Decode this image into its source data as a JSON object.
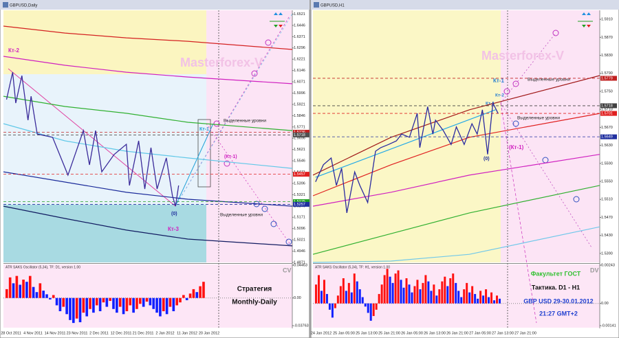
{
  "windows": [
    {
      "title": "GBPUSD,Daily",
      "watermark": "Masterforex-V",
      "price": {
        "xlim": [
          0,
          94
        ],
        "ylim": [
          1.4871,
          1.6546
        ],
        "yticks": [
          1.6521,
          1.6446,
          1.6371,
          1.6296,
          1.6221,
          1.6146,
          1.6071,
          1.5996,
          1.5921,
          1.5846,
          1.5771,
          1.5696,
          1.5621,
          1.5546,
          1.5471,
          1.5396,
          1.5321,
          1.5246,
          1.5171,
          1.5096,
          1.5021,
          1.4946,
          1.4871
        ],
        "x": [
          1,
          3,
          4,
          6,
          8,
          9,
          11,
          16,
          21,
          26,
          28,
          30,
          32,
          36,
          40,
          41,
          44,
          46,
          48,
          50,
          53,
          55,
          56,
          57
        ],
        "values": [
          1.5953,
          1.6135,
          1.593,
          1.6112,
          1.5816,
          1.5975,
          1.5724,
          1.5702,
          1.5451,
          1.5747,
          1.5519,
          1.5747,
          1.5473,
          1.5588,
          1.5656,
          1.5382,
          1.5679,
          1.5359,
          1.5633,
          1.5359,
          1.5565,
          1.5314,
          1.5245,
          1.5382
        ],
        "color": "#3a2a9a"
      },
      "averages": [
        {
          "color": "#d42020",
          "x": [
            0,
            20,
            40,
            60,
            94
          ],
          "values": [
            1.6441,
            1.6395,
            1.6363,
            1.634,
            1.6286
          ]
        },
        {
          "color": "#d020c0",
          "x": [
            0,
            20,
            40,
            60,
            94
          ],
          "values": [
            1.624,
            1.6181,
            1.6135,
            1.6103,
            1.6058
          ]
        },
        {
          "color": "#30b030",
          "x": [
            0,
            20,
            40,
            60,
            94
          ],
          "values": [
            1.5975,
            1.5907,
            1.5862,
            1.5802,
            1.5747
          ]
        },
        {
          "color": "#60c8e8",
          "x": [
            0,
            20,
            40,
            60,
            94
          ],
          "values": [
            1.5793,
            1.5679,
            1.561,
            1.5565,
            1.5496
          ]
        },
        {
          "color": "#1a2a9a",
          "x": [
            0,
            20,
            40,
            60,
            94
          ],
          "values": [
            1.5473,
            1.5405,
            1.5337,
            1.5291,
            1.5245
          ]
        },
        {
          "color": "#101a60",
          "x": [
            0,
            20,
            40,
            60,
            94
          ],
          "values": [
            1.5245,
            1.5163,
            1.5086,
            1.5026,
            1.4981
          ]
        }
      ],
      "levels": [
        {
          "value": 1.5736,
          "color": "#c02020"
        },
        {
          "value": 1.5718,
          "color": "#505050"
        },
        {
          "value": 1.5457,
          "color": "#e02020"
        },
        {
          "value": 1.5275,
          "color": "#20a020"
        },
        {
          "value": 1.5257,
          "color": "#2030a0"
        }
      ],
      "oscillator": {
        "label": "ATR SAKS Oscillator (5,34), TF: D1, version 1.00",
        "ylim": [
          -0.03763,
          0.04463
        ],
        "yticks": [
          0.04463,
          {
            "value": 0,
            "label": "0.00"
          },
          -0.03763
        ],
        "values": [
          0.012,
          0.028,
          0.02,
          0.03,
          0.018,
          0.025,
          0.022,
          0.03,
          0.015,
          0.008,
          0.02,
          0.01,
          0.005,
          -0.002,
          0.004,
          -0.01,
          -0.018,
          -0.012,
          -0.022,
          -0.03,
          -0.034,
          -0.028,
          -0.033,
          -0.02,
          -0.025,
          -0.015,
          -0.02,
          -0.01,
          -0.018,
          -0.006,
          -0.012,
          -0.004,
          -0.015,
          -0.02,
          -0.012,
          -0.022,
          -0.018,
          -0.01,
          -0.02,
          -0.015,
          -0.008,
          -0.012,
          -0.005,
          -0.01,
          -0.015,
          -0.02,
          -0.025,
          -0.018,
          -0.022,
          -0.012,
          -0.018,
          -0.01,
          -0.006,
          0.004,
          -0.003,
          0.006,
          0.012,
          0.008,
          0.016,
          0.022
        ]
      },
      "dates": [
        "28 Oct 2011",
        "4 Nov 2011",
        "14 Nov 2011",
        "23 Nov 2011",
        "2 Dec 2011",
        "12 Dec 2011",
        "21 Dec 2011",
        "2 Jan 2012",
        "11 Jan 2012",
        "20 Jan 2012"
      ],
      "annotations": [
        "Кт-2",
        "Кт-3",
        "Кт-1",
        "(Кт-1)",
        "(0)",
        "Выделенные уровни",
        "Выделенные уровни",
        "Стратегия",
        "Monthly-Daily",
        "CV"
      ]
    },
    {
      "title": "GBPUSD,H1",
      "watermark": "Masterforex-V",
      "price": {
        "xlim": [
          0,
          110
        ],
        "ylim": [
          1.537,
          1.593
        ],
        "yticks": [
          {
            "value": 1.591,
            "label": "1.5910"
          },
          {
            "value": 1.587,
            "label": "1.5870"
          },
          {
            "value": 1.583,
            "label": "1.5830"
          },
          {
            "value": 1.579,
            "label": "1.5790"
          },
          {
            "value": 1.575,
            "label": "1.5750"
          },
          {
            "value": 1.571,
            "label": "1.5710"
          },
          {
            "value": 1.567,
            "label": "1.5670"
          },
          {
            "value": 1.563,
            "label": "1.5630"
          },
          {
            "value": 1.559,
            "label": "1.5590"
          },
          {
            "value": 1.555,
            "label": "1.5550"
          },
          {
            "value": 1.551,
            "label": "1.5510"
          },
          {
            "value": 1.547,
            "label": "1.5470"
          },
          {
            "value": 1.543,
            "label": "1.5430"
          },
          {
            "value": 1.539,
            "label": "1.5390"
          }
        ],
        "x": [
          1,
          4,
          7,
          9,
          11,
          13,
          16,
          18,
          21,
          24,
          26,
          29,
          32,
          34,
          37,
          40,
          41,
          44,
          46,
          47,
          50,
          53,
          55,
          58,
          61,
          63,
          65,
          67,
          69,
          71
        ],
        "values": [
          1.5549,
          1.5587,
          1.5602,
          1.5541,
          1.5579,
          1.548,
          1.5571,
          1.5541,
          1.5503,
          1.5617,
          1.5625,
          1.5632,
          1.564,
          1.5655,
          1.5648,
          1.5701,
          1.5625,
          1.5716,
          1.5655,
          1.5686,
          1.5663,
          1.5632,
          1.5671,
          1.5632,
          1.5678,
          1.5655,
          1.5709,
          1.561,
          1.5724,
          1.5701
        ],
        "color": "#2a2aa0"
      },
      "averages": [
        {
          "color": "#a01818",
          "x": [
            0,
            30,
            60,
            110
          ],
          "values": [
            1.5564,
            1.5648,
            1.5709,
            1.5785
          ]
        },
        {
          "color": "#e02020",
          "x": [
            0,
            30,
            60,
            110
          ],
          "values": [
            1.5518,
            1.5587,
            1.5648,
            1.5701
          ]
        },
        {
          "color": "#d020c0",
          "x": [
            0,
            30,
            60,
            110
          ],
          "values": [
            1.5495,
            1.5526,
            1.5564,
            1.561
          ]
        },
        {
          "color": "#30b030",
          "x": [
            0,
            30,
            60,
            110
          ],
          "values": [
            1.5388,
            1.5434,
            1.548,
            1.5541
          ]
        },
        {
          "color": "#70c8ea",
          "x": [
            0,
            30,
            60,
            110
          ],
          "values": [
            1.537,
            1.5373,
            1.5388,
            1.5449
          ]
        },
        {
          "color": "#20a8e8",
          "x": [
            1,
            70
          ],
          "values": [
            1.5559,
            1.5709
          ]
        }
      ],
      "levels": [
        {
          "value": 1.5779,
          "color": "#c02020"
        },
        {
          "value": 1.5718,
          "color": "#404040"
        },
        {
          "value": 1.5701,
          "color": "#e02020"
        },
        {
          "value": 1.5649,
          "color": "#2030a0"
        }
      ],
      "oscillator": {
        "label": "ATR SAKS Oscillator (5,34), TF: H1, version 1.00",
        "ylim": [
          -0.00141,
          0.00243
        ],
        "yticks": [
          0.00243,
          {
            "value": 0,
            "label": "0.00"
          },
          -0.00141
        ],
        "values": [
          0.0012,
          0.0018,
          0.0008,
          0.0015,
          0.0006,
          -0.0004,
          -0.0009,
          -0.0003,
          0.0005,
          0.0011,
          0.0016,
          0.0008,
          0.0013,
          0.0007,
          0.0019,
          0.0014,
          0.0009,
          0.0004,
          -0.0002,
          -0.0006,
          -0.0011,
          -0.0008,
          -0.0004,
          0.0006,
          0.0012,
          0.0018,
          0.0022,
          0.0017,
          0.0013,
          0.0019,
          0.0021,
          0.0015,
          0.001,
          0.0016,
          0.0012,
          0.0007,
          0.0011,
          0.0015,
          0.0009,
          0.0013,
          0.0018,
          0.0014,
          0.0008,
          0.0012,
          0.0005,
          0.0009,
          0.0014,
          0.0017,
          0.0011,
          0.0016,
          0.0019,
          0.0013,
          0.0008,
          0.0004,
          0.0009,
          0.0013,
          0.0007,
          0.0011,
          0.0006,
          0.0003,
          0.0008,
          0.0005,
          0.0009,
          0.0004,
          0.0007,
          0.0002,
          0.0005,
          0.0003
        ]
      },
      "dates": [
        "24 Jan 2012",
        "25 Jan 05:00",
        "25 Jan 13:00",
        "25 Jan 21:00",
        "26 Jan 05:00",
        "26 Jan 13:00",
        "26 Jan 21:00",
        "27 Jan 05:00",
        "27 Jan 13:00",
        "27 Jan 21:00"
      ],
      "annotations": [
        "Кт-1",
        "Кт-1",
        "Кт-2",
        "(Кт-1)",
        "(0)",
        "Выделенные уровни",
        "Выделенные уровни",
        "Факультет ГОСТ",
        "Тактика. D1 - H1",
        "GBP USD 29-30.01.2012",
        "21:27 GMT+2",
        "DV"
      ]
    }
  ]
}
